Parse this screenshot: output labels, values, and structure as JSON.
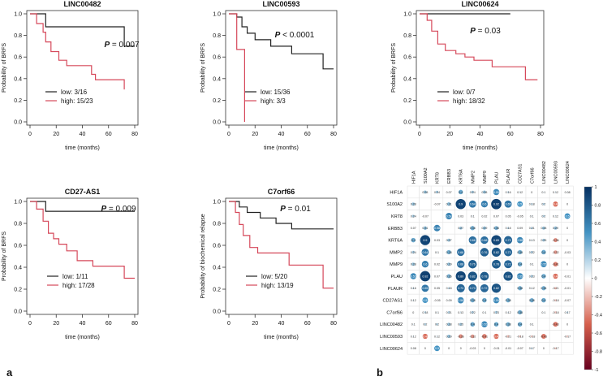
{
  "panel_labels": {
    "a": "a",
    "b": "b"
  },
  "chart_data": [
    {
      "type": "line",
      "title": "LINC00482",
      "xlabel": "time (months)",
      "ylabel": "Probability of BRFS",
      "xlim": [
        0,
        80
      ],
      "ylim": [
        0,
        1
      ],
      "xticks": [
        "0",
        "20",
        "40",
        "60",
        "80"
      ],
      "yticks": [
        "0.0",
        "0.2",
        "0.4",
        "0.6",
        "0.8",
        "1.0"
      ],
      "annotation": {
        "p_label": "P",
        "p_text": " = 0.007"
      },
      "series": [
        {
          "name": "low: 3/16",
          "color": "#222222",
          "x": [
            0,
            12,
            12,
            72,
            72,
            80
          ],
          "y": [
            1.0,
            1.0,
            0.88,
            0.88,
            0.7,
            0.7
          ]
        },
        {
          "name": "high: 15/23",
          "color": "#d6485a",
          "x": [
            0,
            5,
            5,
            10,
            10,
            12,
            12,
            16,
            16,
            22,
            22,
            28,
            28,
            35,
            35,
            47,
            47,
            50,
            50,
            72,
            72
          ],
          "y": [
            1.0,
            1.0,
            0.91,
            0.91,
            0.83,
            0.83,
            0.74,
            0.74,
            0.65,
            0.65,
            0.57,
            0.57,
            0.52,
            0.52,
            0.52,
            0.52,
            0.44,
            0.44,
            0.39,
            0.39,
            0.3
          ]
        }
      ]
    },
    {
      "type": "line",
      "title": "LINC00593",
      "xlabel": "time (months)",
      "ylabel": "Probability of BRFS",
      "xlim": [
        0,
        80
      ],
      "ylim": [
        0,
        1
      ],
      "xticks": [
        "0",
        "20",
        "40",
        "60",
        "80"
      ],
      "yticks": [
        "0.0",
        "0.2",
        "0.4",
        "0.6",
        "0.8",
        "1.0"
      ],
      "annotation": {
        "p_label": "P",
        "p_text": " < 0.0001"
      },
      "series": [
        {
          "name": "low: 15/36",
          "color": "#222222",
          "x": [
            0,
            6,
            6,
            10,
            10,
            14,
            14,
            20,
            20,
            32,
            32,
            48,
            48,
            72,
            72,
            80
          ],
          "y": [
            1.0,
            1.0,
            0.97,
            0.97,
            0.88,
            0.88,
            0.82,
            0.82,
            0.76,
            0.76,
            0.7,
            0.7,
            0.63,
            0.63,
            0.49,
            0.49
          ]
        },
        {
          "name": "high: 3/3",
          "color": "#d6485a",
          "x": [
            0,
            6,
            6,
            12,
            12
          ],
          "y": [
            1.0,
            1.0,
            0.67,
            0.67,
            0.0
          ]
        }
      ]
    },
    {
      "type": "line",
      "title": "LINC00624",
      "xlabel": "time (months)",
      "ylabel": "Probability of BRFS",
      "xlim": [
        0,
        80
      ],
      "ylim": [
        0,
        1
      ],
      "xticks": [
        "0",
        "20",
        "40",
        "60",
        "80"
      ],
      "yticks": [
        "0.0",
        "0.2",
        "0.4",
        "0.6",
        "0.8",
        "1.0"
      ],
      "annotation": {
        "p_label": "P",
        "p_text": " = 0.03"
      },
      "series": [
        {
          "name": "low: 0/7",
          "color": "#222222",
          "x": [
            0,
            60
          ],
          "y": [
            1.0,
            1.0
          ]
        },
        {
          "name": "high: 18/32",
          "color": "#d6485a",
          "x": [
            0,
            5,
            5,
            8,
            8,
            12,
            12,
            17,
            17,
            24,
            24,
            30,
            30,
            36,
            36,
            48,
            48,
            70,
            70,
            78
          ],
          "y": [
            1.0,
            1.0,
            0.94,
            0.94,
            0.84,
            0.84,
            0.72,
            0.72,
            0.66,
            0.66,
            0.63,
            0.63,
            0.6,
            0.6,
            0.57,
            0.57,
            0.51,
            0.51,
            0.39,
            0.39
          ]
        }
      ]
    },
    {
      "type": "line",
      "title": "CD27-AS1",
      "xlabel": "time (months)",
      "ylabel": "Probability of BRFS",
      "xlim": [
        0,
        80
      ],
      "ylim": [
        0,
        1
      ],
      "xticks": [
        "0",
        "20",
        "40",
        "60",
        "80"
      ],
      "yticks": [
        "0.0",
        "0.2",
        "0.4",
        "0.6",
        "0.8",
        "1.0"
      ],
      "annotation": {
        "p_label": "P",
        "p_text": " = 0.009"
      },
      "series": [
        {
          "name": "low: 1/11",
          "color": "#222222",
          "x": [
            0,
            12,
            12,
            80
          ],
          "y": [
            1.0,
            1.0,
            0.91,
            0.91
          ]
        },
        {
          "name": "high: 17/28",
          "color": "#d6485a",
          "x": [
            0,
            5,
            5,
            10,
            10,
            14,
            14,
            18,
            18,
            22,
            22,
            28,
            28,
            36,
            36,
            48,
            48,
            72,
            72,
            80
          ],
          "y": [
            1.0,
            1.0,
            0.93,
            0.93,
            0.82,
            0.82,
            0.71,
            0.71,
            0.66,
            0.66,
            0.61,
            0.61,
            0.55,
            0.55,
            0.46,
            0.46,
            0.41,
            0.41,
            0.3,
            0.3
          ]
        }
      ]
    },
    {
      "type": "line",
      "title": "C7orf66",
      "xlabel": "time (months)",
      "ylabel": "Probability of biochemical relapse",
      "xlim": [
        0,
        80
      ],
      "ylim": [
        0,
        1
      ],
      "xticks": [
        "0",
        "20",
        "40",
        "60",
        "80"
      ],
      "yticks": [
        "0.0",
        "0.2",
        "0.4",
        "0.6",
        "0.8",
        "1.0"
      ],
      "annotation": {
        "p_label": "P",
        "p_text": " = 0.01"
      },
      "series": [
        {
          "name": "low: 5/20",
          "color": "#222222",
          "x": [
            0,
            8,
            8,
            14,
            14,
            24,
            24,
            36,
            36,
            48,
            48,
            80
          ],
          "y": [
            1.0,
            1.0,
            0.95,
            0.95,
            0.9,
            0.9,
            0.85,
            0.85,
            0.8,
            0.8,
            0.75,
            0.75
          ]
        },
        {
          "name": "high: 13/19",
          "color": "#d6485a",
          "x": [
            0,
            5,
            5,
            8,
            8,
            11,
            11,
            16,
            16,
            22,
            22,
            46,
            46,
            72,
            72,
            80
          ],
          "y": [
            1.0,
            1.0,
            0.9,
            0.9,
            0.79,
            0.79,
            0.69,
            0.69,
            0.58,
            0.58,
            0.53,
            0.53,
            0.42,
            0.42,
            0.21,
            0.21
          ]
        }
      ]
    },
    {
      "type": "heatmap",
      "title": "",
      "labels": [
        "HIF1A",
        "S100A2",
        "KRT8",
        "ERBB3",
        "KRT6A",
        "MMP2",
        "MMP9",
        "PLAU",
        "PLAUR",
        "CD27AS1",
        "C7orf66",
        "LINC00482",
        "LINC00593",
        "LINC00624"
      ],
      "matrix": [
        [
          1,
          0.28,
          0.24,
          0.07,
          0.4,
          0.24,
          0.28,
          0.55,
          0.16,
          0.12,
          0.0,
          0.1,
          0.12,
          0.08
        ],
        [
          0.28,
          1,
          -0.07,
          0.31,
          0.9,
          0.64,
          0.6,
          0.92,
          0.65,
          0.5,
          0.18,
          0.2,
          -0.46,
          0.0
        ],
        [
          0.24,
          -0.07,
          1,
          0.58,
          0.03,
          0.1,
          0.02,
          0.07,
          0.05,
          -0.05,
          0.1,
          0.2,
          0.12,
          0.5
        ],
        [
          0.07,
          0.31,
          0.58,
          1,
          0.27,
          0.38,
          0.29,
          0.36,
          0.18,
          0.09,
          0.21,
          0.28,
          0.29,
          0.0
        ],
        [
          0.4,
          0.9,
          0.03,
          0.27,
          1,
          0.68,
          0.68,
          0.89,
          0.73,
          0.56,
          0.13,
          0.25,
          -0.36,
          0.0
        ],
        [
          0.24,
          0.64,
          0.1,
          0.38,
          0.68,
          1,
          0.76,
          0.82,
          0.73,
          0.38,
          0.22,
          0.4,
          -0.32,
          -0.03
        ],
        [
          0.28,
          0.6,
          0.02,
          0.29,
          0.68,
          0.76,
          1,
          0.78,
          0.72,
          0.4,
          0.1,
          0.55,
          -0.41,
          0.0
        ],
        [
          0.55,
          0.92,
          0.07,
          0.36,
          0.89,
          0.82,
          0.78,
          1,
          0.82,
          0.55,
          0.23,
          0.4,
          -0.46,
          -0.01
        ],
        [
          0.16,
          0.65,
          0.05,
          0.18,
          0.73,
          0.73,
          0.72,
          0.82,
          1,
          0.38,
          0.12,
          0.38,
          -0.21,
          -0.01
        ],
        [
          0.12,
          0.5,
          -0.05,
          0.09,
          0.56,
          0.38,
          0.4,
          0.55,
          0.38,
          1,
          0.38,
          0.4,
          -0.18,
          -0.07
        ],
        [
          0.0,
          0.18,
          0.1,
          0.21,
          0.13,
          0.22,
          0.1,
          0.23,
          0.12,
          0.38,
          1,
          0.1,
          -0.18,
          0.17
        ],
        [
          0.1,
          0.2,
          0.2,
          0.28,
          0.25,
          0.4,
          0.55,
          0.4,
          0.38,
          0.4,
          0.1,
          1,
          -0.43,
          0.0
        ],
        [
          0.12,
          -0.46,
          0.12,
          0.29,
          -0.36,
          -0.32,
          -0.41,
          -0.46,
          -0.21,
          -0.18,
          -0.18,
          -0.43,
          1,
          -0.17
        ],
        [
          0.08,
          0.0,
          0.5,
          0.0,
          0.0,
          -0.03,
          0.0,
          -0.01,
          -0.01,
          -0.07,
          0.17,
          0.0,
          -0.17,
          1
        ]
      ],
      "colorbar_ticks": [
        "1",
        "0.8",
        "0.6",
        "0.4",
        "0.2",
        "0",
        "-0.2",
        "-0.4",
        "-0.6",
        "-0.8",
        "-1"
      ],
      "zlim": [
        -1,
        1
      ]
    }
  ]
}
